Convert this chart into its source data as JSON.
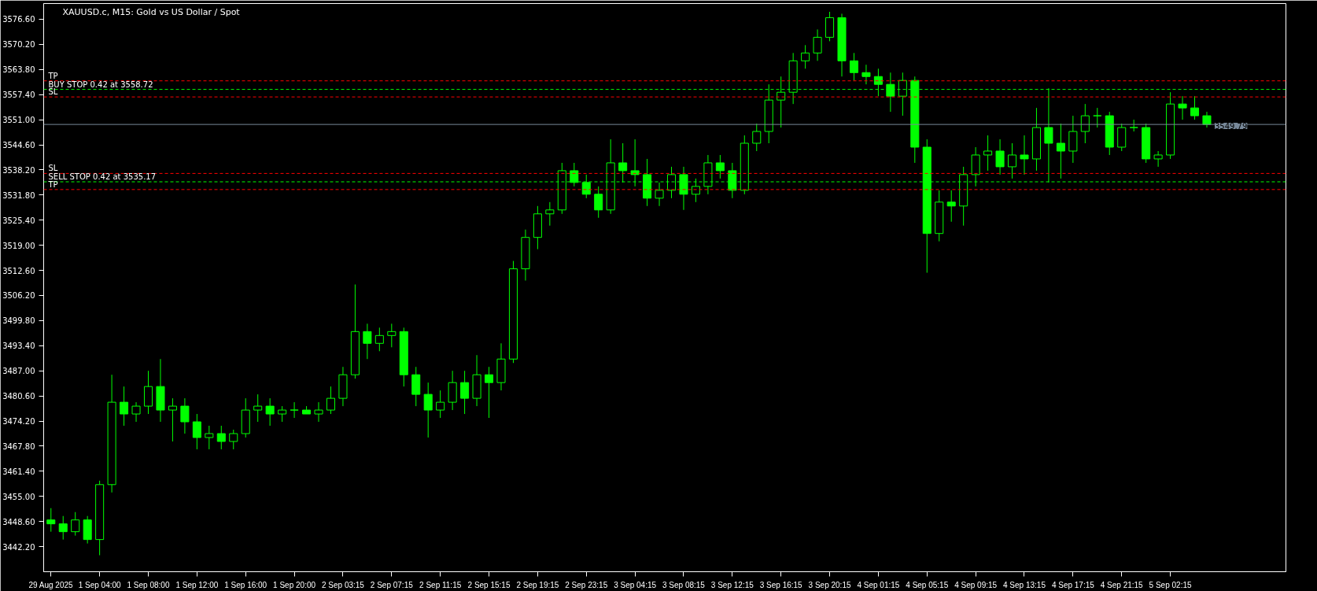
{
  "chart_data": {
    "type": "candlestick",
    "title": "XAUUSD.c, M15:  Gold vs US Dollar / Spot",
    "color": "#00ff00",
    "categories": [
      "29 Aug 2025",
      null,
      null,
      null,
      "1 Sep 04:00",
      null,
      null,
      null,
      "1 Sep 08:00",
      null,
      null,
      null,
      "1 Sep 12:00",
      null,
      null,
      null,
      "1 Sep 16:00",
      null,
      null,
      null,
      "1 Sep 20:00",
      null,
      null,
      null,
      "2 Sep 03:15",
      null,
      null,
      null,
      "2 Sep 07:15",
      null,
      null,
      null,
      "2 Sep 11:15",
      null,
      null,
      null,
      "2 Sep 15:15",
      null,
      null,
      null,
      "2 Sep 19:15",
      null,
      null,
      null,
      "2 Sep 23:15",
      null,
      null,
      null,
      "3 Sep 04:15",
      null,
      null,
      null,
      "3 Sep 08:15",
      null,
      null,
      null,
      "3 Sep 12:15",
      null,
      null,
      null,
      "3 Sep 16:15",
      null,
      null,
      null,
      "3 Sep 20:15",
      null,
      null,
      null,
      "4 Sep 01:15",
      null,
      null,
      null,
      "4 Sep 05:15",
      null,
      null,
      null,
      "4 Sep 09:15",
      null,
      null,
      null,
      "4 Sep 13:15",
      null,
      null,
      null,
      "4 Sep 17:15",
      null,
      null,
      null,
      "4 Sep 21:15",
      null,
      null,
      null,
      "5 Sep 02:15",
      null,
      null,
      null
    ],
    "ohlc": [
      [
        3449,
        3452,
        3446,
        3448
      ],
      [
        3448,
        3450,
        3444,
        3446
      ],
      [
        3446,
        3451,
        3445,
        3449
      ],
      [
        3449,
        3450,
        3443,
        3444
      ],
      [
        3444,
        3459,
        3440,
        3458
      ],
      [
        3458,
        3486,
        3456,
        3479
      ],
      [
        3479,
        3483,
        3473,
        3476
      ],
      [
        3476,
        3479,
        3474,
        3478
      ],
      [
        3478,
        3487,
        3476,
        3483
      ],
      [
        3483,
        3490,
        3474,
        3477
      ],
      [
        3477,
        3480,
        3469,
        3478
      ],
      [
        3478,
        3480,
        3471,
        3474
      ],
      [
        3474,
        3476,
        3467,
        3470
      ],
      [
        3470,
        3473,
        3467,
        3471
      ],
      [
        3471,
        3473,
        3467,
        3469
      ],
      [
        3469,
        3472,
        3467,
        3471
      ],
      [
        3471,
        3480,
        3470,
        3477
      ],
      [
        3477,
        3481,
        3474,
        3478
      ],
      [
        3478,
        3480,
        3473,
        3476
      ],
      [
        3476,
        3478,
        3474,
        3477
      ],
      [
        3477,
        3479,
        3475,
        3477
      ],
      [
        3477,
        3478,
        3476,
        3476
      ],
      [
        3476,
        3479,
        3474,
        3477
      ],
      [
        3477,
        3483,
        3476,
        3480
      ],
      [
        3480,
        3488,
        3478,
        3486
      ],
      [
        3486,
        3509,
        3485,
        3497
      ],
      [
        3497,
        3499,
        3490,
        3494
      ],
      [
        3494,
        3498,
        3492,
        3496
      ],
      [
        3496,
        3499,
        3493,
        3497
      ],
      [
        3497,
        3498,
        3483,
        3486
      ],
      [
        3486,
        3488,
        3478,
        3481
      ],
      [
        3481,
        3484,
        3470,
        3477
      ],
      [
        3477,
        3482,
        3475,
        3479
      ],
      [
        3479,
        3487,
        3477,
        3484
      ],
      [
        3484,
        3487,
        3476,
        3480
      ],
      [
        3480,
        3491,
        3478,
        3486
      ],
      [
        3486,
        3488,
        3475,
        3484
      ],
      [
        3484,
        3494,
        3482,
        3490
      ],
      [
        3490,
        3515,
        3489,
        3513
      ],
      [
        3513,
        3523,
        3510,
        3521
      ],
      [
        3521,
        3529,
        3518,
        3527
      ],
      [
        3527,
        3530,
        3524,
        3528
      ],
      [
        3528,
        3540,
        3527,
        3538
      ],
      [
        3538,
        3540,
        3534,
        3535
      ],
      [
        3535,
        3537,
        3531,
        3532
      ],
      [
        3532,
        3534,
        3526,
        3528
      ],
      [
        3528,
        3546,
        3527,
        3540
      ],
      [
        3540,
        3545,
        3535,
        3538
      ],
      [
        3538,
        3546,
        3534,
        3537
      ],
      [
        3537,
        3541,
        3529,
        3531
      ],
      [
        3531,
        3535,
        3529,
        3533
      ],
      [
        3533,
        3539,
        3531,
        3537
      ],
      [
        3537,
        3539,
        3528,
        3532
      ],
      [
        3532,
        3536,
        3530,
        3534
      ],
      [
        3534,
        3542,
        3532,
        3540
      ],
      [
        3540,
        3542,
        3536,
        3538
      ],
      [
        3538,
        3540,
        3531,
        3533
      ],
      [
        3533,
        3547,
        3532,
        3545
      ],
      [
        3545,
        3550,
        3543,
        3548
      ],
      [
        3548,
        3560,
        3545,
        3556
      ],
      [
        3556,
        3562,
        3549,
        3558
      ],
      [
        3558,
        3568,
        3555,
        3566
      ],
      [
        3566,
        3570,
        3564,
        3568
      ],
      [
        3568,
        3574,
        3566,
        3572
      ],
      [
        3572,
        3578.5,
        3571,
        3577
      ],
      [
        3577,
        3578,
        3562,
        3566
      ],
      [
        3566,
        3568,
        3561,
        3563
      ],
      [
        3563,
        3565,
        3560,
        3562
      ],
      [
        3562,
        3564,
        3557,
        3560
      ],
      [
        3560,
        3563,
        3553,
        3557
      ],
      [
        3557,
        3563,
        3552,
        3561
      ],
      [
        3561,
        3562,
        3540,
        3544
      ],
      [
        3544,
        3546,
        3512,
        3522
      ],
      [
        3522,
        3533,
        3520,
        3530
      ],
      [
        3530,
        3533,
        3525,
        3529
      ],
      [
        3529,
        3539,
        3524,
        3537
      ],
      [
        3537,
        3544,
        3534,
        3542
      ],
      [
        3542,
        3547,
        3538,
        3543
      ],
      [
        3543,
        3546,
        3537,
        3539
      ],
      [
        3539,
        3545,
        3536,
        3542
      ],
      [
        3542,
        3547,
        3537,
        3541
      ],
      [
        3541,
        3554,
        3538,
        3549
      ],
      [
        3549,
        3559,
        3535,
        3545
      ],
      [
        3545,
        3550,
        3536,
        3543
      ],
      [
        3543,
        3552,
        3540,
        3548
      ],
      [
        3548,
        3555,
        3545,
        3552
      ],
      [
        3552,
        3554,
        3549,
        3552
      ],
      [
        3552,
        3553,
        3542,
        3544
      ],
      [
        3544,
        3550,
        3543,
        3549
      ],
      [
        3549,
        3551,
        3548,
        3549
      ],
      [
        3549,
        3550,
        3540,
        3541
      ],
      [
        3541,
        3543,
        3539,
        3542
      ],
      [
        3542,
        3558,
        3541,
        3555
      ],
      [
        3555,
        3557,
        3551,
        3554
      ],
      [
        3554,
        3557,
        3551,
        3552
      ],
      [
        3552,
        3553,
        3549,
        3549.79
      ]
    ],
    "ylim": [
      3435.8,
      3580.6
    ],
    "yticks": [
      {
        "value": 3442.2,
        "label": "3442.20"
      },
      {
        "value": 3448.6,
        "label": "3448.60"
      },
      {
        "value": 3455.0,
        "label": "3455.00"
      },
      {
        "value": 3461.4,
        "label": "3461.40"
      },
      {
        "value": 3467.8,
        "label": "3467.80"
      },
      {
        "value": 3474.2,
        "label": "3474.20"
      },
      {
        "value": 3480.6,
        "label": "3480.60"
      },
      {
        "value": 3487.0,
        "label": "3487.00"
      },
      {
        "value": 3493.4,
        "label": "3493.40"
      },
      {
        "value": 3499.8,
        "label": "3499.80"
      },
      {
        "value": 3506.2,
        "label": "3506.20"
      },
      {
        "value": 3512.6,
        "label": "3512.60"
      },
      {
        "value": 3519.0,
        "label": "3519.00"
      },
      {
        "value": 3525.4,
        "label": "3525.40"
      },
      {
        "value": 3531.8,
        "label": "3531.80"
      },
      {
        "value": 3538.2,
        "label": "3538.20"
      },
      {
        "value": 3544.6,
        "label": "3544.60"
      },
      {
        "value": 3551.0,
        "label": "3551.00"
      },
      {
        "value": 3557.4,
        "label": "3557.40"
      },
      {
        "value": 3563.8,
        "label": "3563.80"
      },
      {
        "value": 3570.2,
        "label": "3570.20"
      },
      {
        "value": 3576.6,
        "label": "3576.60"
      }
    ],
    "grid": false,
    "ref_lines": [
      {
        "axis": "y",
        "value": 3560.9,
        "label": "TP",
        "color": "#ff0000",
        "line_style": "dashed"
      },
      {
        "axis": "y",
        "value": 3558.72,
        "label": "BUY STOP 0.42 at 3558.72",
        "color": "#00ff00",
        "line_style": "dashed"
      },
      {
        "axis": "y",
        "value": 3556.8,
        "label": "SL",
        "color": "#ff0000",
        "line_style": "dashed"
      },
      {
        "axis": "y",
        "value": 3549.79,
        "label": "3549.79",
        "color": "#778899",
        "line_style": "solid"
      },
      {
        "axis": "y",
        "value": 3537.3,
        "label": "SL",
        "color": "#ff0000",
        "line_style": "dashed"
      },
      {
        "axis": "y",
        "value": 3535.17,
        "label": "SELL STOP 0.42 at 3535.17",
        "color": "#00ff00",
        "line_style": "dashed"
      },
      {
        "axis": "y",
        "value": 3533.2,
        "label": "TP",
        "color": "#ff0000",
        "line_style": "dashed"
      }
    ]
  }
}
